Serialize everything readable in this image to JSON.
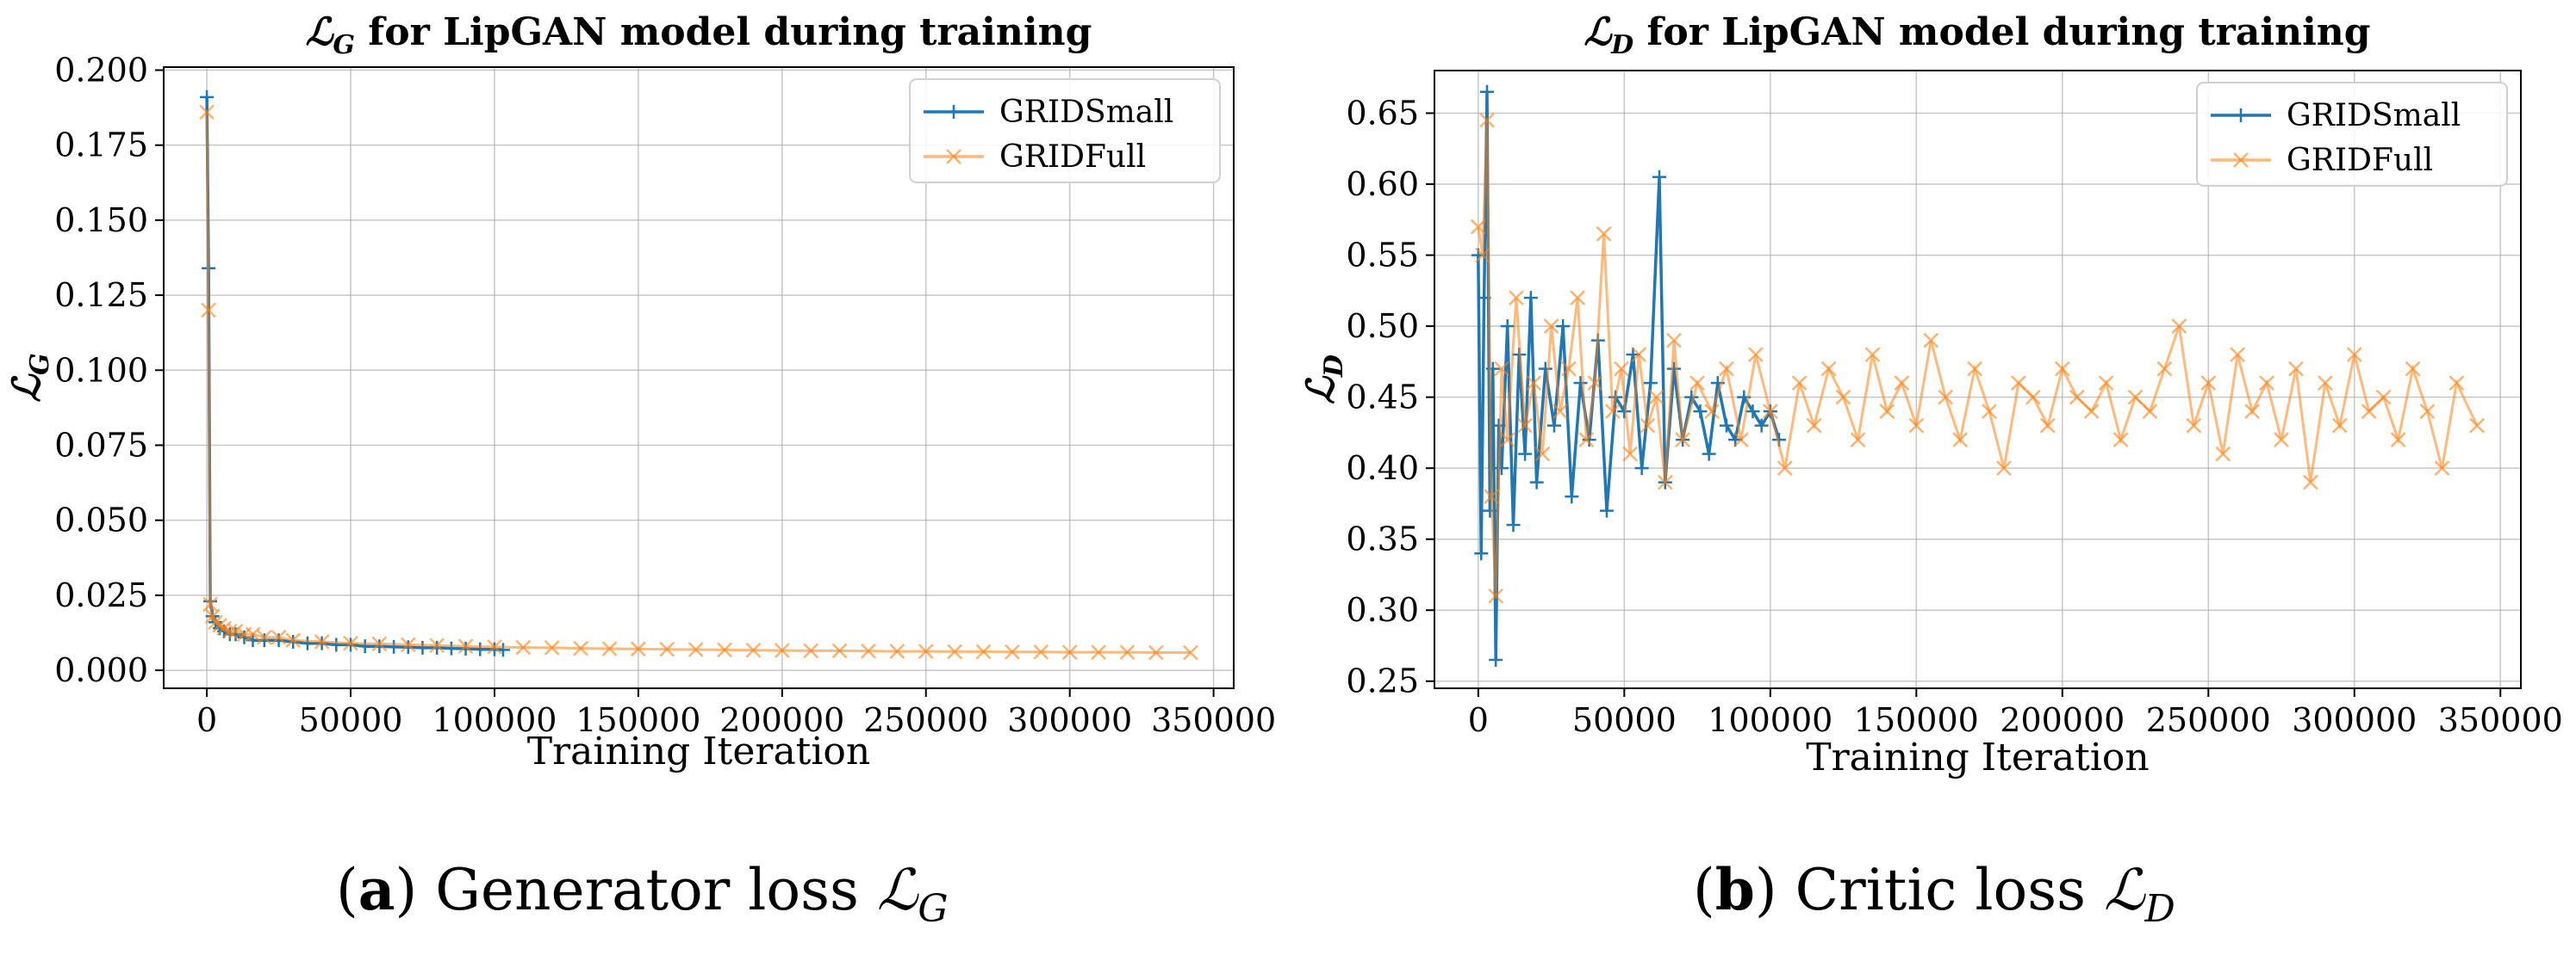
{
  "figures": [
    {
      "caption": {
        "letter": "a",
        "text": "Generator loss",
        "math": "ℒ",
        "sub": "G"
      }
    },
    {
      "caption": {
        "letter": "b",
        "text": "Critic loss",
        "math": "ℒ",
        "sub": "D"
      }
    }
  ],
  "chart_data": [
    {
      "type": "line",
      "title": "ℒG for LipGAN model during training",
      "title_math": "ℒ",
      "title_sub": "G",
      "title_rest": " for LipGAN model during training",
      "xlabel": "Training Iteration",
      "ylabel": "ℒG",
      "ylabel_math": "ℒ",
      "ylabel_sub": "G",
      "xlim": [
        -15000,
        357000
      ],
      "ylim": [
        -0.006,
        0.201
      ],
      "xticks": [
        0,
        50000,
        100000,
        150000,
        200000,
        250000,
        300000,
        350000
      ],
      "yticks": [
        0.0,
        0.025,
        0.05,
        0.075,
        0.1,
        0.125,
        0.15,
        0.175,
        0.2
      ],
      "ytick_labels": [
        "0.000",
        "0.025",
        "0.050",
        "0.075",
        "0.100",
        "0.125",
        "0.150",
        "0.175",
        "0.200"
      ],
      "xtick_labels": [
        "0",
        "50000",
        "100000",
        "150000",
        "200000",
        "250000",
        "300000",
        "350000"
      ],
      "grid": true,
      "legend_position": "upper right",
      "series": [
        {
          "name": "GRIDSmall",
          "color": "#1f77b4",
          "marker": "plus",
          "x": [
            0,
            600,
            1200,
            2000,
            3000,
            4500,
            6000,
            8000,
            10000,
            13000,
            16000,
            20000,
            25000,
            30000,
            35000,
            40000,
            45000,
            50000,
            55000,
            60000,
            65000,
            70000,
            75000,
            80000,
            85000,
            90000,
            95000,
            100000,
            103000
          ],
          "y": [
            0.191,
            0.134,
            0.023,
            0.018,
            0.016,
            0.014,
            0.013,
            0.012,
            0.012,
            0.011,
            0.01,
            0.01,
            0.01,
            0.0095,
            0.009,
            0.009,
            0.0085,
            0.0085,
            0.008,
            0.008,
            0.0078,
            0.0077,
            0.0075,
            0.0075,
            0.0073,
            0.0072,
            0.007,
            0.007,
            0.0068
          ]
        },
        {
          "name": "GRIDFull",
          "color": "#ff7f0e",
          "marker": "x",
          "x": [
            0,
            600,
            1200,
            2000,
            3000,
            4500,
            6000,
            8000,
            10000,
            13000,
            16000,
            20000,
            25000,
            30000,
            40000,
            50000,
            60000,
            70000,
            80000,
            90000,
            100000,
            110000,
            120000,
            130000,
            140000,
            150000,
            160000,
            170000,
            180000,
            190000,
            200000,
            210000,
            220000,
            230000,
            240000,
            250000,
            260000,
            270000,
            280000,
            290000,
            300000,
            310000,
            320000,
            330000,
            342000
          ],
          "y": [
            0.186,
            0.12,
            0.022,
            0.018,
            0.016,
            0.015,
            0.014,
            0.013,
            0.013,
            0.012,
            0.012,
            0.011,
            0.011,
            0.01,
            0.0095,
            0.009,
            0.0088,
            0.0085,
            0.0083,
            0.008,
            0.0078,
            0.0076,
            0.0075,
            0.0073,
            0.0072,
            0.0071,
            0.007,
            0.0069,
            0.0068,
            0.0067,
            0.0066,
            0.0065,
            0.0065,
            0.0064,
            0.0063,
            0.0063,
            0.0062,
            0.0062,
            0.0061,
            0.0061,
            0.006,
            0.006,
            0.006,
            0.0059,
            0.0059
          ]
        }
      ]
    },
    {
      "type": "line",
      "title": "ℒD for LipGAN model during training",
      "title_math": "ℒ",
      "title_sub": "D",
      "title_rest": " for LipGAN model during training",
      "xlabel": "Training Iteration",
      "ylabel": "ℒD",
      "ylabel_math": "ℒ",
      "ylabel_sub": "D",
      "xlim": [
        -15000,
        357000
      ],
      "ylim": [
        0.245,
        0.68
      ],
      "xticks": [
        0,
        50000,
        100000,
        150000,
        200000,
        250000,
        300000,
        350000
      ],
      "yticks": [
        0.25,
        0.3,
        0.35,
        0.4,
        0.45,
        0.5,
        0.55,
        0.6,
        0.65
      ],
      "ytick_labels": [
        "0.25",
        "0.30",
        "0.35",
        "0.40",
        "0.45",
        "0.50",
        "0.55",
        "0.60",
        "0.65"
      ],
      "xtick_labels": [
        "0",
        "50000",
        "100000",
        "150000",
        "200000",
        "250000",
        "300000",
        "350000"
      ],
      "grid": true,
      "legend_position": "upper right",
      "series": [
        {
          "name": "GRIDSmall",
          "color": "#1f77b4",
          "marker": "plus",
          "x": [
            0,
            1000,
            2000,
            3000,
            4000,
            5000,
            6000,
            7000,
            8000,
            10000,
            12000,
            14000,
            16000,
            18000,
            20000,
            23000,
            26000,
            29000,
            32000,
            35000,
            38000,
            41000,
            44000,
            47000,
            50000,
            53000,
            56000,
            59000,
            62000,
            64000,
            67000,
            70000,
            73000,
            76000,
            79000,
            82000,
            85000,
            88000,
            91000,
            94000,
            97000,
            100000,
            103000
          ],
          "y": [
            0.55,
            0.34,
            0.52,
            0.665,
            0.37,
            0.47,
            0.265,
            0.43,
            0.4,
            0.5,
            0.36,
            0.48,
            0.41,
            0.52,
            0.39,
            0.47,
            0.43,
            0.5,
            0.38,
            0.46,
            0.42,
            0.49,
            0.37,
            0.45,
            0.44,
            0.48,
            0.4,
            0.46,
            0.605,
            0.39,
            0.47,
            0.42,
            0.45,
            0.44,
            0.41,
            0.46,
            0.43,
            0.42,
            0.45,
            0.44,
            0.43,
            0.44,
            0.42
          ]
        },
        {
          "name": "GRIDFull",
          "color": "#ff7f0e",
          "marker": "x",
          "x": [
            0,
            1500,
            3000,
            4500,
            6000,
            8000,
            10000,
            13000,
            16000,
            19000,
            22000,
            25000,
            28000,
            31000,
            34000,
            37000,
            40000,
            43000,
            46000,
            49000,
            52000,
            55000,
            58000,
            61000,
            64000,
            67000,
            70000,
            75000,
            80000,
            85000,
            90000,
            95000,
            100000,
            105000,
            110000,
            115000,
            120000,
            125000,
            130000,
            135000,
            140000,
            145000,
            150000,
            155000,
            160000,
            165000,
            170000,
            175000,
            180000,
            185000,
            190000,
            195000,
            200000,
            205000,
            210000,
            215000,
            220000,
            225000,
            230000,
            235000,
            240000,
            245000,
            250000,
            255000,
            260000,
            265000,
            270000,
            275000,
            280000,
            285000,
            290000,
            295000,
            300000,
            305000,
            310000,
            315000,
            320000,
            325000,
            330000,
            335000,
            342000
          ],
          "y": [
            0.57,
            0.55,
            0.645,
            0.38,
            0.31,
            0.47,
            0.42,
            0.52,
            0.43,
            0.46,
            0.41,
            0.5,
            0.44,
            0.47,
            0.52,
            0.42,
            0.46,
            0.565,
            0.44,
            0.47,
            0.41,
            0.48,
            0.43,
            0.45,
            0.39,
            0.49,
            0.42,
            0.46,
            0.44,
            0.47,
            0.42,
            0.48,
            0.44,
            0.4,
            0.46,
            0.43,
            0.47,
            0.45,
            0.42,
            0.48,
            0.44,
            0.46,
            0.43,
            0.49,
            0.45,
            0.42,
            0.47,
            0.44,
            0.4,
            0.46,
            0.45,
            0.43,
            0.47,
            0.45,
            0.44,
            0.46,
            0.42,
            0.45,
            0.44,
            0.47,
            0.5,
            0.43,
            0.46,
            0.41,
            0.48,
            0.44,
            0.46,
            0.42,
            0.47,
            0.39,
            0.46,
            0.43,
            0.48,
            0.44,
            0.45,
            0.42,
            0.47,
            0.44,
            0.4,
            0.46,
            0.43
          ]
        }
      ]
    }
  ]
}
